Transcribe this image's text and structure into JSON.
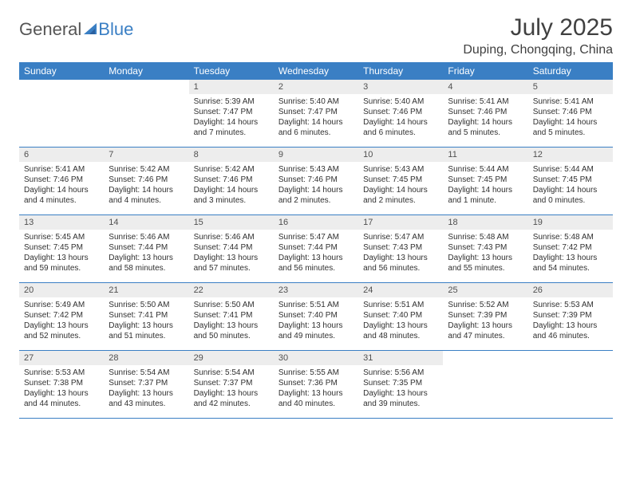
{
  "brand": {
    "part1": "General",
    "part2": "Blue"
  },
  "title": "July 2025",
  "location": "Duping, Chongqing, China",
  "colors": {
    "header_bg": "#3a7fc4",
    "header_text": "#ffffff",
    "daynum_bg": "#ededed",
    "text": "#303030",
    "line": "#3a7fc4"
  },
  "day_names": [
    "Sunday",
    "Monday",
    "Tuesday",
    "Wednesday",
    "Thursday",
    "Friday",
    "Saturday"
  ],
  "weeks": [
    [
      {
        "n": "",
        "sr": "",
        "ss": "",
        "dl": ""
      },
      {
        "n": "",
        "sr": "",
        "ss": "",
        "dl": ""
      },
      {
        "n": "1",
        "sr": "Sunrise: 5:39 AM",
        "ss": "Sunset: 7:47 PM",
        "dl": "Daylight: 14 hours and 7 minutes."
      },
      {
        "n": "2",
        "sr": "Sunrise: 5:40 AM",
        "ss": "Sunset: 7:47 PM",
        "dl": "Daylight: 14 hours and 6 minutes."
      },
      {
        "n": "3",
        "sr": "Sunrise: 5:40 AM",
        "ss": "Sunset: 7:46 PM",
        "dl": "Daylight: 14 hours and 6 minutes."
      },
      {
        "n": "4",
        "sr": "Sunrise: 5:41 AM",
        "ss": "Sunset: 7:46 PM",
        "dl": "Daylight: 14 hours and 5 minutes."
      },
      {
        "n": "5",
        "sr": "Sunrise: 5:41 AM",
        "ss": "Sunset: 7:46 PM",
        "dl": "Daylight: 14 hours and 5 minutes."
      }
    ],
    [
      {
        "n": "6",
        "sr": "Sunrise: 5:41 AM",
        "ss": "Sunset: 7:46 PM",
        "dl": "Daylight: 14 hours and 4 minutes."
      },
      {
        "n": "7",
        "sr": "Sunrise: 5:42 AM",
        "ss": "Sunset: 7:46 PM",
        "dl": "Daylight: 14 hours and 4 minutes."
      },
      {
        "n": "8",
        "sr": "Sunrise: 5:42 AM",
        "ss": "Sunset: 7:46 PM",
        "dl": "Daylight: 14 hours and 3 minutes."
      },
      {
        "n": "9",
        "sr": "Sunrise: 5:43 AM",
        "ss": "Sunset: 7:46 PM",
        "dl": "Daylight: 14 hours and 2 minutes."
      },
      {
        "n": "10",
        "sr": "Sunrise: 5:43 AM",
        "ss": "Sunset: 7:45 PM",
        "dl": "Daylight: 14 hours and 2 minutes."
      },
      {
        "n": "11",
        "sr": "Sunrise: 5:44 AM",
        "ss": "Sunset: 7:45 PM",
        "dl": "Daylight: 14 hours and 1 minute."
      },
      {
        "n": "12",
        "sr": "Sunrise: 5:44 AM",
        "ss": "Sunset: 7:45 PM",
        "dl": "Daylight: 14 hours and 0 minutes."
      }
    ],
    [
      {
        "n": "13",
        "sr": "Sunrise: 5:45 AM",
        "ss": "Sunset: 7:45 PM",
        "dl": "Daylight: 13 hours and 59 minutes."
      },
      {
        "n": "14",
        "sr": "Sunrise: 5:46 AM",
        "ss": "Sunset: 7:44 PM",
        "dl": "Daylight: 13 hours and 58 minutes."
      },
      {
        "n": "15",
        "sr": "Sunrise: 5:46 AM",
        "ss": "Sunset: 7:44 PM",
        "dl": "Daylight: 13 hours and 57 minutes."
      },
      {
        "n": "16",
        "sr": "Sunrise: 5:47 AM",
        "ss": "Sunset: 7:44 PM",
        "dl": "Daylight: 13 hours and 56 minutes."
      },
      {
        "n": "17",
        "sr": "Sunrise: 5:47 AM",
        "ss": "Sunset: 7:43 PM",
        "dl": "Daylight: 13 hours and 56 minutes."
      },
      {
        "n": "18",
        "sr": "Sunrise: 5:48 AM",
        "ss": "Sunset: 7:43 PM",
        "dl": "Daylight: 13 hours and 55 minutes."
      },
      {
        "n": "19",
        "sr": "Sunrise: 5:48 AM",
        "ss": "Sunset: 7:42 PM",
        "dl": "Daylight: 13 hours and 54 minutes."
      }
    ],
    [
      {
        "n": "20",
        "sr": "Sunrise: 5:49 AM",
        "ss": "Sunset: 7:42 PM",
        "dl": "Daylight: 13 hours and 52 minutes."
      },
      {
        "n": "21",
        "sr": "Sunrise: 5:50 AM",
        "ss": "Sunset: 7:41 PM",
        "dl": "Daylight: 13 hours and 51 minutes."
      },
      {
        "n": "22",
        "sr": "Sunrise: 5:50 AM",
        "ss": "Sunset: 7:41 PM",
        "dl": "Daylight: 13 hours and 50 minutes."
      },
      {
        "n": "23",
        "sr": "Sunrise: 5:51 AM",
        "ss": "Sunset: 7:40 PM",
        "dl": "Daylight: 13 hours and 49 minutes."
      },
      {
        "n": "24",
        "sr": "Sunrise: 5:51 AM",
        "ss": "Sunset: 7:40 PM",
        "dl": "Daylight: 13 hours and 48 minutes."
      },
      {
        "n": "25",
        "sr": "Sunrise: 5:52 AM",
        "ss": "Sunset: 7:39 PM",
        "dl": "Daylight: 13 hours and 47 minutes."
      },
      {
        "n": "26",
        "sr": "Sunrise: 5:53 AM",
        "ss": "Sunset: 7:39 PM",
        "dl": "Daylight: 13 hours and 46 minutes."
      }
    ],
    [
      {
        "n": "27",
        "sr": "Sunrise: 5:53 AM",
        "ss": "Sunset: 7:38 PM",
        "dl": "Daylight: 13 hours and 44 minutes."
      },
      {
        "n": "28",
        "sr": "Sunrise: 5:54 AM",
        "ss": "Sunset: 7:37 PM",
        "dl": "Daylight: 13 hours and 43 minutes."
      },
      {
        "n": "29",
        "sr": "Sunrise: 5:54 AM",
        "ss": "Sunset: 7:37 PM",
        "dl": "Daylight: 13 hours and 42 minutes."
      },
      {
        "n": "30",
        "sr": "Sunrise: 5:55 AM",
        "ss": "Sunset: 7:36 PM",
        "dl": "Daylight: 13 hours and 40 minutes."
      },
      {
        "n": "31",
        "sr": "Sunrise: 5:56 AM",
        "ss": "Sunset: 7:35 PM",
        "dl": "Daylight: 13 hours and 39 minutes."
      },
      {
        "n": "",
        "sr": "",
        "ss": "",
        "dl": ""
      },
      {
        "n": "",
        "sr": "",
        "ss": "",
        "dl": ""
      }
    ]
  ]
}
